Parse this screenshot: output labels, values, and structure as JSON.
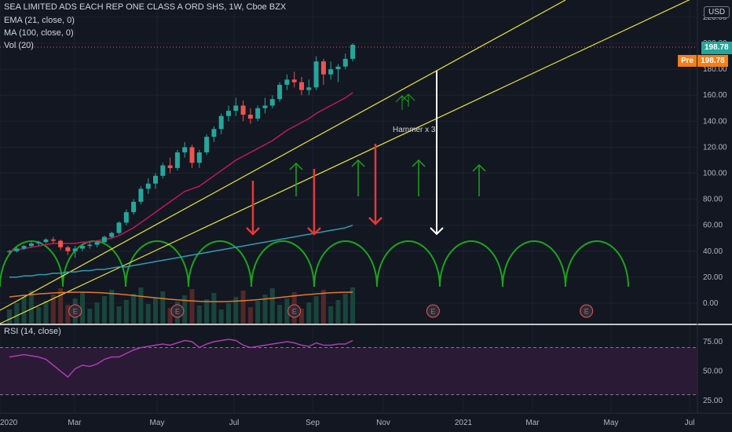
{
  "legend": {
    "title": "SEA LIMITED ADS EACH REP ONE CLASS A ORD SHS, 1W, Cboe BZX",
    "ema": "EMA (21, close, 0)",
    "ma": "MA (100, close, 0)",
    "vol": "Vol (20)",
    "rsi": "RSI (14, close)"
  },
  "currency": "USD",
  "price_badge": "198.78",
  "pre_label": "Pre",
  "pre_value": "198.78",
  "annotation": "Hammer x 3",
  "earnings_marker": "E",
  "colors": {
    "background": "#131722",
    "up": "#26a69a",
    "down": "#ef5350",
    "channel": "#e8e831",
    "ema": "#c2185b",
    "ma": "#2e9bb3",
    "cycle": "#1aa51a",
    "vol_ma": "#e07a2f",
    "rsi": "#b03ab3",
    "rsi_band": "#2a1a36"
  },
  "chart_data": [
    {
      "type": "candlestick",
      "price_ticks": [
        "220.00",
        "200.00",
        "180.00",
        "160.00",
        "140.00",
        "120.00",
        "100.00",
        "80.00",
        "60.00",
        "40.00",
        "20.00",
        "0.00"
      ],
      "ylim": [
        0,
        230
      ],
      "x_ticks": [
        "2020",
        "Mar",
        "May",
        "Jul",
        "Sep",
        "Nov",
        "2021",
        "Mar",
        "May",
        "Jul"
      ],
      "xlim": [
        "2019-12-30",
        "2021-07-05"
      ],
      "weeks_ohlc": [
        [
          40,
          41,
          38,
          40
        ],
        [
          40,
          43,
          39,
          42
        ],
        [
          42,
          45,
          41,
          44
        ],
        [
          44,
          47,
          43,
          46
        ],
        [
          46,
          48,
          44,
          47
        ],
        [
          47,
          50,
          46,
          49
        ],
        [
          49,
          51,
          46,
          48
        ],
        [
          48,
          49,
          41,
          43
        ],
        [
          43,
          44,
          37,
          40
        ],
        [
          40,
          44,
          35,
          42
        ],
        [
          42,
          46,
          40,
          44
        ],
        [
          44,
          47,
          42,
          45
        ],
        [
          45,
          48,
          43,
          47
        ],
        [
          47,
          52,
          46,
          51
        ],
        [
          51,
          55,
          50,
          54
        ],
        [
          54,
          63,
          53,
          62
        ],
        [
          62,
          72,
          60,
          70
        ],
        [
          70,
          80,
          68,
          78
        ],
        [
          78,
          90,
          76,
          88
        ],
        [
          88,
          96,
          84,
          92
        ],
        [
          92,
          100,
          88,
          98
        ],
        [
          98,
          108,
          96,
          106
        ],
        [
          106,
          112,
          100,
          104
        ],
        [
          104,
          118,
          102,
          116
        ],
        [
          116,
          124,
          112,
          120
        ],
        [
          120,
          122,
          104,
          108
        ],
        [
          108,
          118,
          104,
          116
        ],
        [
          116,
          130,
          114,
          128
        ],
        [
          128,
          136,
          124,
          134
        ],
        [
          134,
          146,
          130,
          144
        ],
        [
          144,
          152,
          140,
          148
        ],
        [
          148,
          158,
          144,
          152
        ],
        [
          152,
          156,
          140,
          145
        ],
        [
          145,
          150,
          138,
          142
        ],
        [
          142,
          152,
          140,
          150
        ],
        [
          150,
          158,
          146,
          152
        ],
        [
          152,
          160,
          150,
          157
        ],
        [
          157,
          170,
          155,
          168
        ],
        [
          168,
          176,
          164,
          172
        ],
        [
          172,
          178,
          166,
          170
        ],
        [
          170,
          174,
          160,
          164
        ],
        [
          164,
          172,
          160,
          166
        ],
        [
          166,
          190,
          164,
          186
        ],
        [
          186,
          188,
          168,
          176
        ],
        [
          176,
          186,
          172,
          180
        ],
        [
          180,
          184,
          170,
          182
        ],
        [
          182,
          192,
          180,
          188
        ],
        [
          188,
          200,
          186,
          198.78
        ]
      ],
      "ema21": [
        40,
        41,
        42,
        43,
        44,
        45,
        46,
        46,
        46,
        46,
        47,
        47,
        48,
        49,
        50,
        52,
        55,
        58,
        62,
        66,
        70,
        74,
        78,
        82,
        86,
        88,
        90,
        94,
        98,
        102,
        106,
        110,
        113,
        116,
        119,
        122,
        125,
        129,
        133,
        136,
        139,
        142,
        146,
        149,
        152,
        155,
        158,
        162
      ],
      "ma100": [
        20,
        20,
        21,
        21,
        22,
        22,
        23,
        23,
        24,
        24,
        25,
        25,
        26,
        26,
        27,
        28,
        28,
        29,
        30,
        31,
        32,
        33,
        34,
        35,
        36,
        37,
        38,
        39,
        40,
        41,
        42,
        43,
        44,
        45,
        46,
        47,
        48,
        49,
        50,
        51,
        52,
        53,
        54,
        55,
        56,
        57,
        58,
        60
      ],
      "rsi": [
        62,
        63,
        64,
        63,
        62,
        60,
        55,
        50,
        45,
        52,
        55,
        54,
        56,
        60,
        62,
        62,
        65,
        68,
        70,
        71,
        72,
        73,
        72,
        74,
        76,
        75,
        70,
        73,
        75,
        76,
        77,
        76,
        72,
        70,
        71,
        72,
        73,
        74,
        75,
        74,
        72,
        71,
        74,
        72,
        72,
        73,
        73,
        76
      ],
      "rsi_ticks": [
        "75.00",
        "50.00",
        "25.00"
      ],
      "rsi_levels": [
        70,
        30
      ],
      "earnings_weeks": [
        9,
        23,
        39,
        58,
        79
      ],
      "annotations": [
        "Hammer x 3"
      ]
    }
  ]
}
